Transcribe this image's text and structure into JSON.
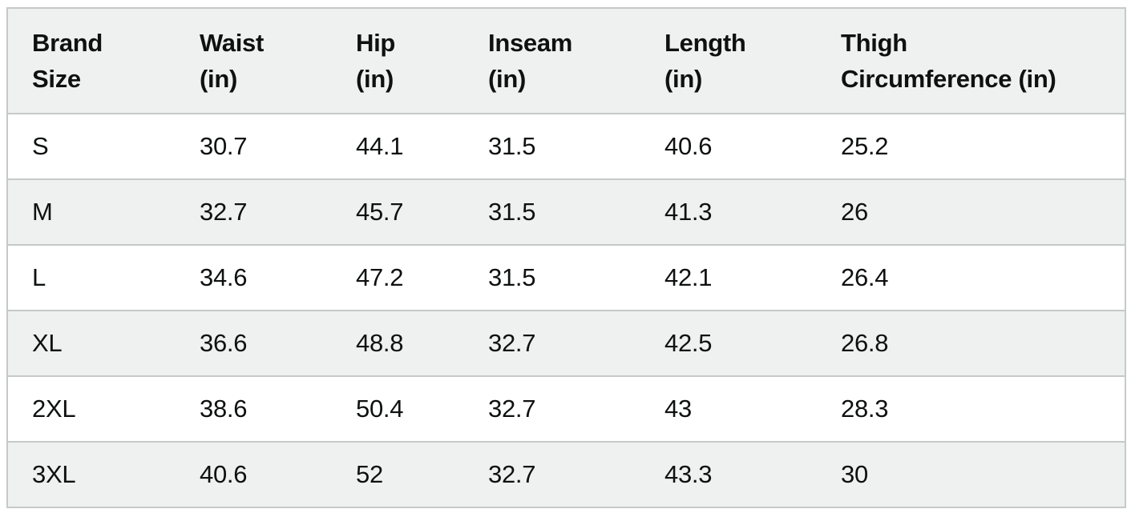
{
  "size_chart": {
    "columns": [
      {
        "label": "Brand Size",
        "lines": [
          "Brand",
          "Size"
        ]
      },
      {
        "label": "Waist (in)",
        "lines": [
          "Waist",
          "(in)"
        ]
      },
      {
        "label": "Hip (in)",
        "lines": [
          "Hip",
          "(in)"
        ]
      },
      {
        "label": "Inseam (in)",
        "lines": [
          "Inseam",
          "(in)"
        ]
      },
      {
        "label": "Length (in)",
        "lines": [
          "Length",
          "(in)"
        ]
      },
      {
        "label": "Thigh Circumference (in)",
        "lines": [
          "Thigh",
          "Circumference (in)"
        ]
      }
    ],
    "rows": [
      {
        "brand_size": "S",
        "waist_in": "30.7",
        "hip_in": "44.1",
        "inseam_in": "31.5",
        "length_in": "40.6",
        "thigh_circumference_in": "25.2"
      },
      {
        "brand_size": "M",
        "waist_in": "32.7",
        "hip_in": "45.7",
        "inseam_in": "31.5",
        "length_in": "41.3",
        "thigh_circumference_in": "26"
      },
      {
        "brand_size": "L",
        "waist_in": "34.6",
        "hip_in": "47.2",
        "inseam_in": "31.5",
        "length_in": "42.1",
        "thigh_circumference_in": "26.4"
      },
      {
        "brand_size": "XL",
        "waist_in": "36.6",
        "hip_in": "48.8",
        "inseam_in": "32.7",
        "length_in": "42.5",
        "thigh_circumference_in": "26.8"
      },
      {
        "brand_size": "2XL",
        "waist_in": "38.6",
        "hip_in": "50.4",
        "inseam_in": "32.7",
        "length_in": "43",
        "thigh_circumference_in": "28.3"
      },
      {
        "brand_size": "3XL",
        "waist_in": "40.6",
        "hip_in": "52",
        "inseam_in": "32.7",
        "length_in": "43.3",
        "thigh_circumference_in": "30"
      }
    ],
    "colors": {
      "stripe_background": "#eff0f0",
      "row_background": "#ffffff",
      "border": "#c5c9c9",
      "text": "#0f1111"
    }
  }
}
